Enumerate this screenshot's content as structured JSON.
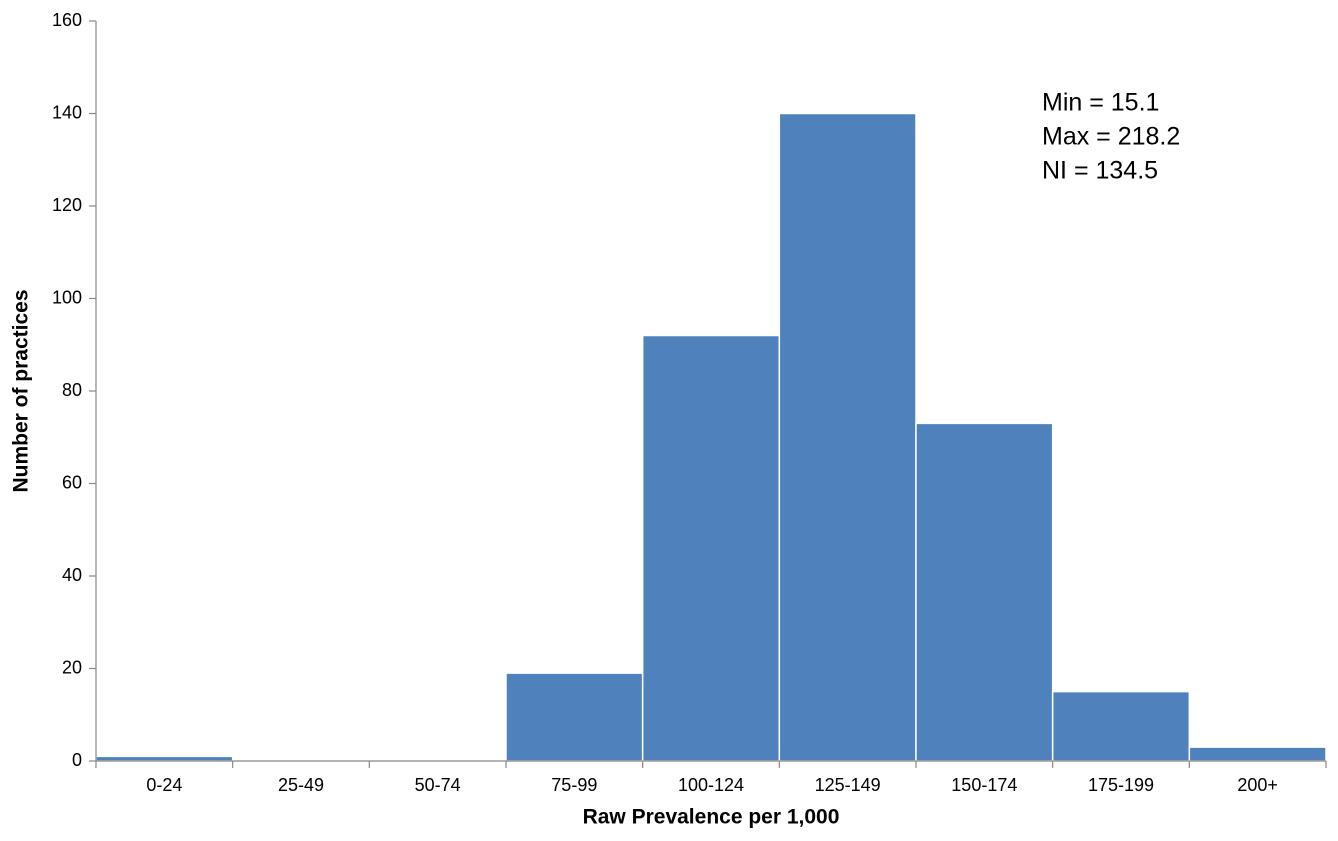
{
  "chart_data": {
    "type": "bar",
    "x_label": "Raw Prevalence per 1,000",
    "y_label": "Number of practices",
    "categories": [
      "0-24",
      "25-49",
      "50-74",
      "75-99",
      "100-124",
      "125-149",
      "150-174",
      "175-199",
      "200+"
    ],
    "values": [
      1,
      0,
      0,
      19,
      92,
      140,
      73,
      15,
      3
    ],
    "color": "#4f81bd",
    "ylim": [
      0,
      160
    ],
    "yticks": [
      0,
      20,
      40,
      60,
      80,
      100,
      120,
      140,
      160
    ],
    "grid": false,
    "annotations": [
      "Min = 15.1",
      "Max = 218.2",
      "NI = 134.5"
    ]
  }
}
